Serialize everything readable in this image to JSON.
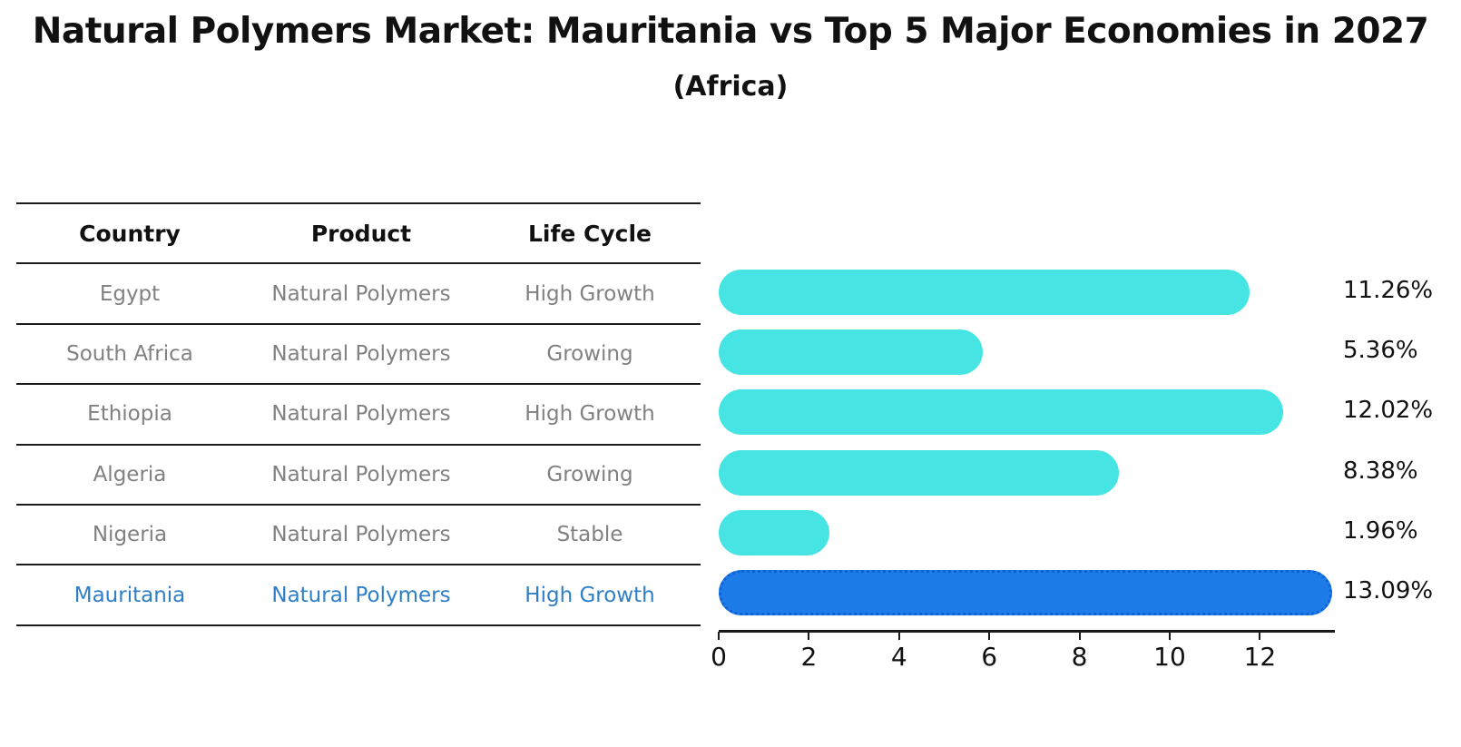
{
  "title": "Natural Polymers Market: Mauritania vs Top 5 Major Economies in 2027",
  "subtitle": "(Africa)",
  "table": {
    "headers": [
      "Country",
      "Product",
      "Life Cycle"
    ],
    "rows": [
      {
        "country": "Egypt",
        "product": "Natural Polymers",
        "life_cycle": "High Growth",
        "highlight": false
      },
      {
        "country": "South Africa",
        "product": "Natural Polymers",
        "life_cycle": "Growing",
        "highlight": false
      },
      {
        "country": "Ethiopia",
        "product": "Natural Polymers",
        "life_cycle": "High Growth",
        "highlight": false
      },
      {
        "country": "Algeria",
        "product": "Natural Polymers",
        "life_cycle": "Growing",
        "highlight": false
      },
      {
        "country": "Nigeria",
        "product": "Natural Polymers",
        "life_cycle": "Stable",
        "highlight": false
      },
      {
        "country": "Mauritania",
        "product": "Natural Polymers",
        "life_cycle": "High Growth",
        "highlight": true
      }
    ]
  },
  "chart_data": {
    "type": "bar",
    "orientation": "horizontal",
    "categories": [
      "Egypt",
      "South Africa",
      "Ethiopia",
      "Algeria",
      "Nigeria",
      "Mauritania"
    ],
    "values": [
      11.26,
      5.36,
      12.02,
      8.38,
      1.96,
      13.09
    ],
    "value_labels": [
      "11.26%",
      "5.36%",
      "12.02%",
      "8.38%",
      "1.96%",
      "13.09%"
    ],
    "x_ticks": [
      0,
      2,
      4,
      6,
      8,
      10,
      12
    ],
    "xlim": [
      0,
      13.65
    ],
    "grid": false,
    "legend": "none",
    "bar_color": "#47e4e4",
    "highlight_color": "#1e7ce8",
    "highlight_index": 5,
    "highlight_text_color": "#2f7fc8",
    "xlabel": "",
    "ylabel": ""
  }
}
